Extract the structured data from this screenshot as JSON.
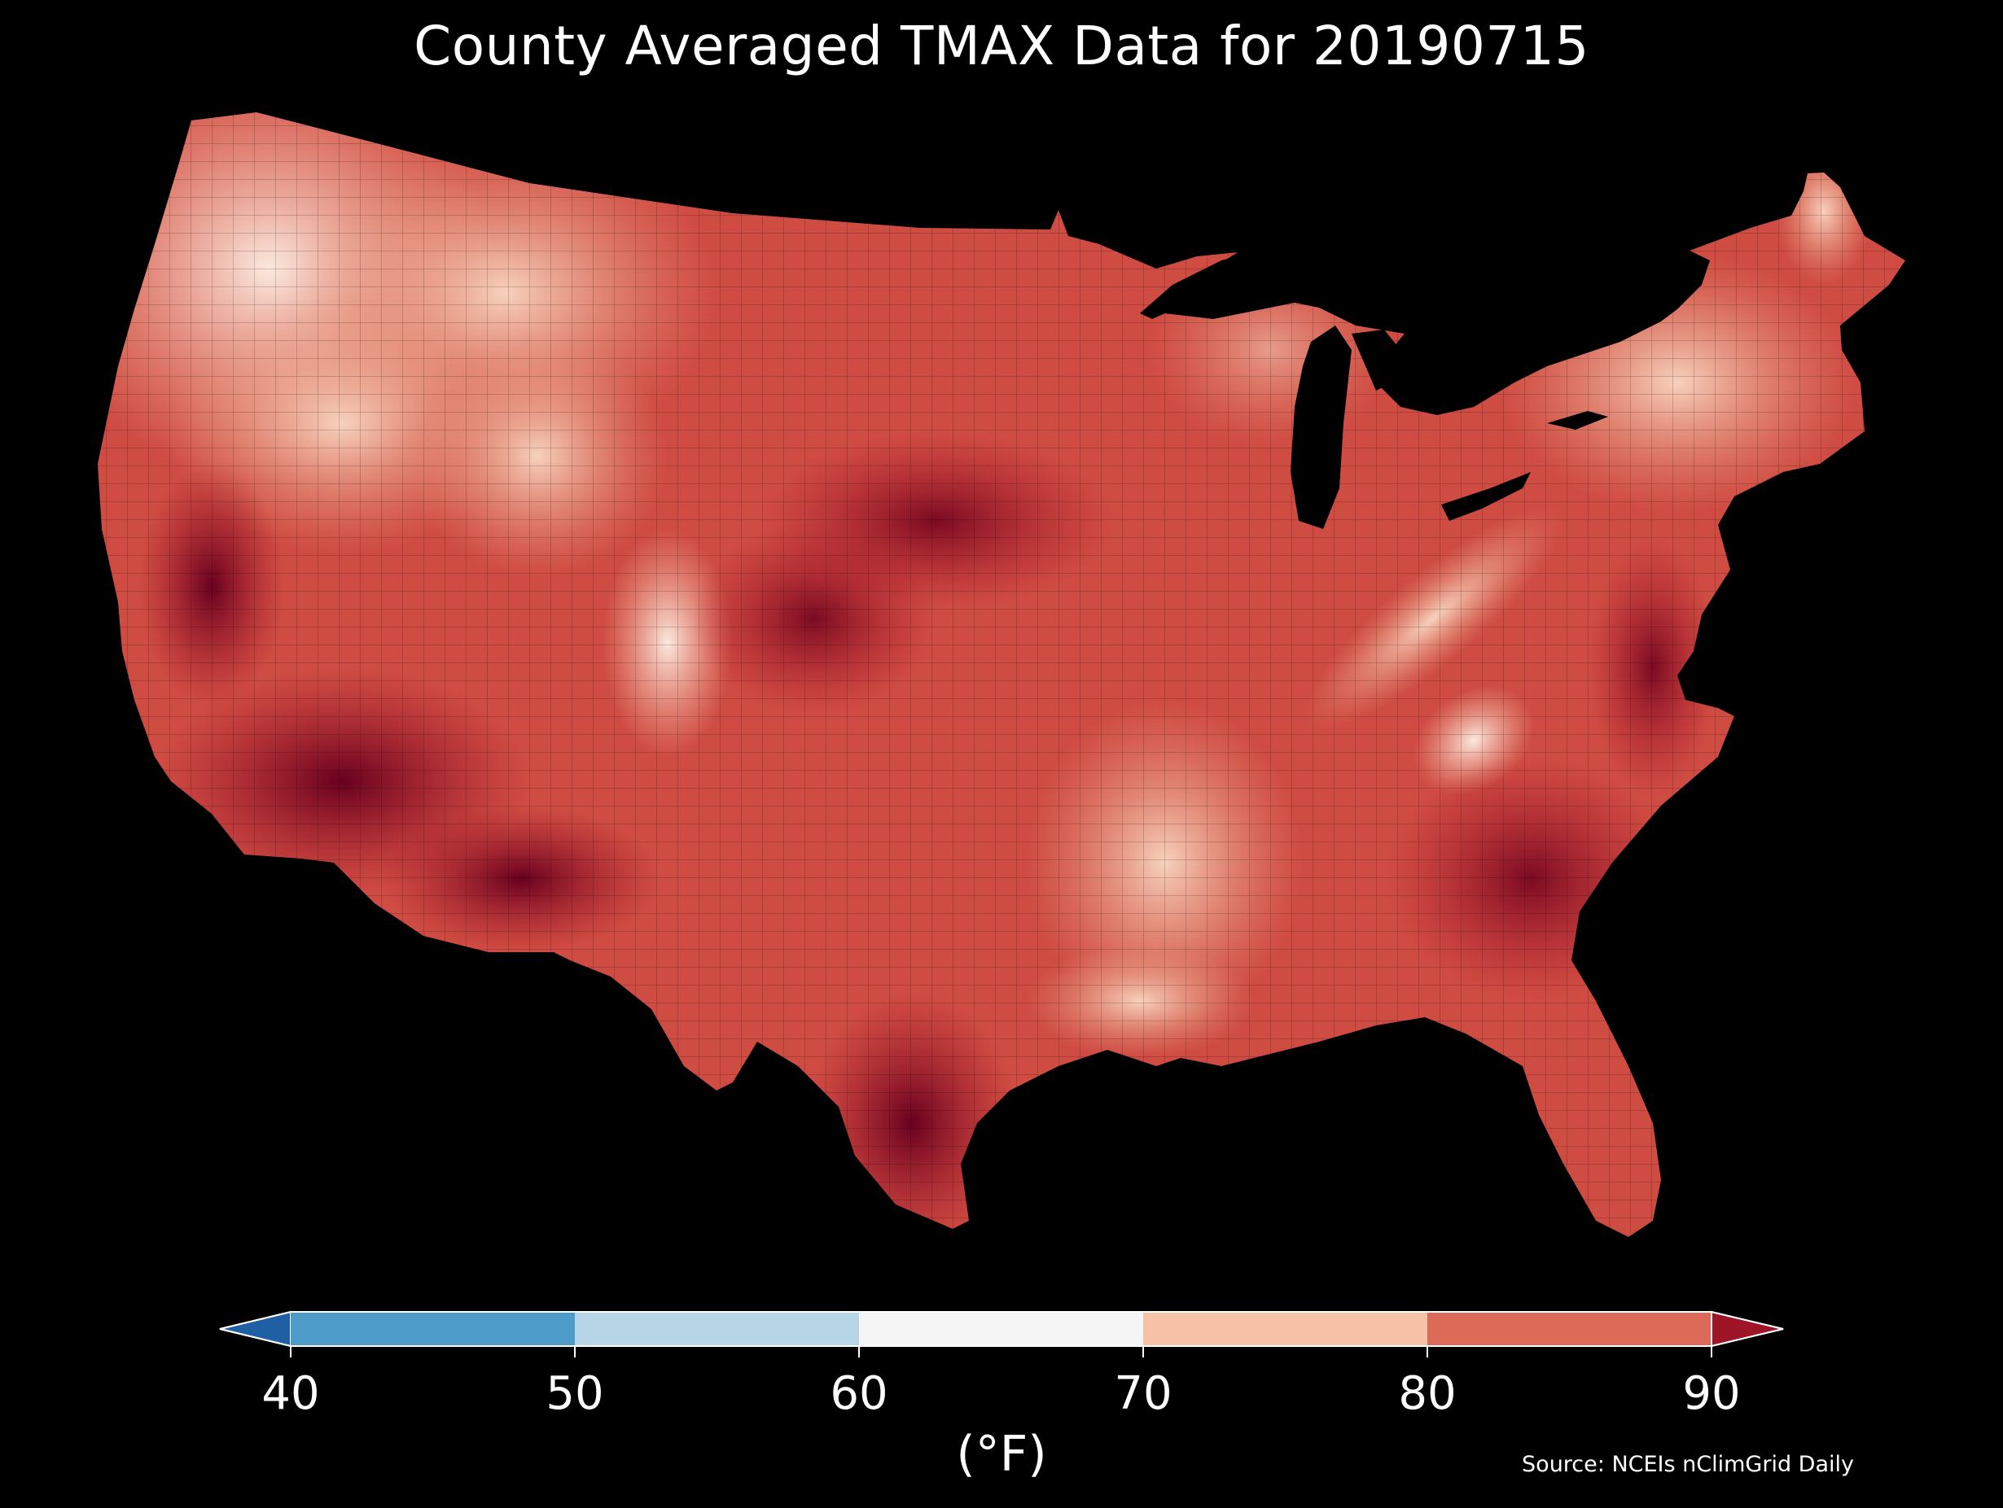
{
  "title": "County Averaged TMAX Data for 20190715",
  "colorbar": {
    "units": "(°F)",
    "ticks": [
      "40",
      "50",
      "60",
      "70",
      "80",
      "90"
    ],
    "extend_low_color": "#1f5fa3",
    "extend_high_color": "#9e1527",
    "bins": [
      {
        "range": "40-50",
        "color": "#4d9bc8"
      },
      {
        "range": "50-60",
        "color": "#b6d6e8"
      },
      {
        "range": "60-70",
        "color": "#f5f5f5"
      },
      {
        "range": "70-80",
        "color": "#f7c3a6"
      },
      {
        "range": "80-90",
        "color": "#dc6a58"
      }
    ]
  },
  "source": "Source: NCEIs nClimGrid Daily",
  "map": {
    "region": "Contiguous United States",
    "variable": "TMAX",
    "date": "20190715",
    "background": "#000000",
    "regional_temperature_bins_F": [
      {
        "area": "Pacific Northwest coast",
        "bin": "60-70"
      },
      {
        "area": "Northern Rockies and Great Basin",
        "bin": "70-80"
      },
      {
        "area": "Northern Plains",
        "bin": "80-90"
      },
      {
        "area": "Central Plains",
        "bin": ">90"
      },
      {
        "area": "Desert Southwest",
        "bin": ">90"
      },
      {
        "area": "Colorado Rockies",
        "bin": "60-70"
      },
      {
        "area": "Lower Mississippi Valley",
        "bin": "70-80"
      },
      {
        "area": "Appalachians",
        "bin": "70-80"
      },
      {
        "area": "New England",
        "bin": "70-80"
      },
      {
        "area": "Southeast",
        "bin": ">90"
      },
      {
        "area": "South Texas",
        "bin": ">90"
      },
      {
        "area": "Florida",
        "bin": "80-90"
      }
    ]
  }
}
